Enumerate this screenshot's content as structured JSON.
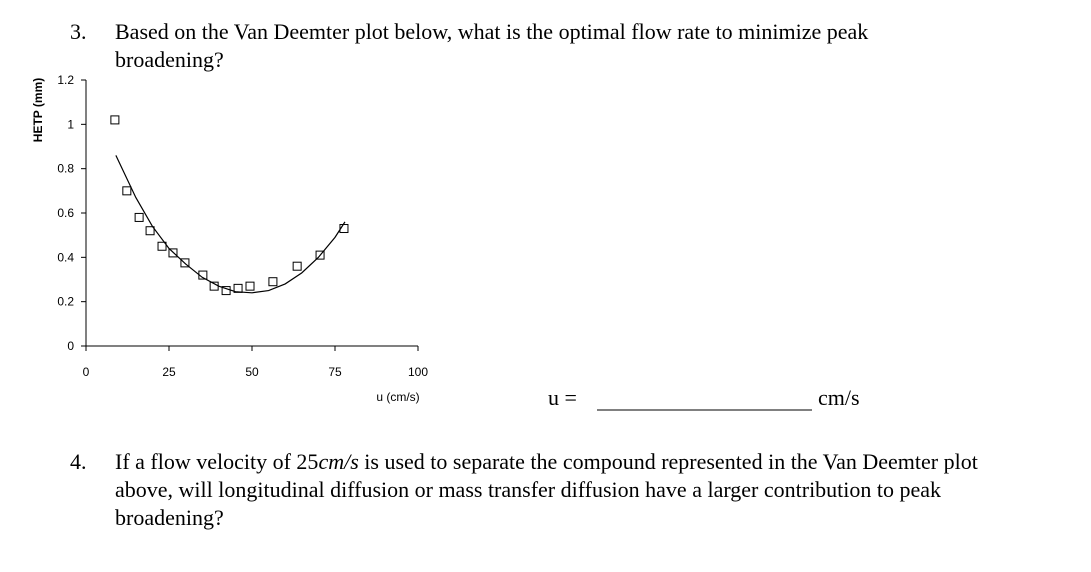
{
  "questions": [
    {
      "number": "3.",
      "line1": "Based on the Van Deemter plot below, what is the optimal flow rate to minimize peak",
      "line2": "broadening?"
    },
    {
      "number": "4.",
      "line1_before": "If a flow velocity of 25",
      "line1_italic": "cm/s",
      "line1_after": " is used to separate the compound represented in the Van Deemter plot",
      "line2": "above, will longitudinal diffusion or mass transfer diffusion have a larger contribution to peak",
      "line3": "broadening?"
    }
  ],
  "answer": {
    "label": "u =",
    "unit": "cm/s"
  },
  "chart_data": {
    "type": "scatter",
    "xlabel": "u (cm/s)",
    "ylabel": "HETP (mm)",
    "xlim": [
      0,
      100
    ],
    "xticks": [
      0,
      25,
      50,
      75,
      100
    ],
    "ylim": [
      0,
      1.2
    ],
    "yticks": [
      0,
      0.2,
      0.4,
      0.6,
      0.8,
      1,
      1.2
    ],
    "grid": false,
    "series": [
      {
        "style": "markers",
        "marker": "square",
        "color": "#000000",
        "x": [
          8.7,
          12.3,
          16,
          19.3,
          22.9,
          26.2,
          29.8,
          35.2,
          38.6,
          42.2,
          45.8,
          49.4,
          56.3,
          63.6,
          70.5,
          77.7
        ],
        "values": [
          1.02,
          0.7,
          0.58,
          0.52,
          0.45,
          0.42,
          0.375,
          0.32,
          0.27,
          0.25,
          0.26,
          0.27,
          0.29,
          0.36,
          0.41,
          0.53
        ]
      },
      {
        "style": "line",
        "color": "#000000",
        "x": [
          9,
          15,
          20,
          25,
          30,
          35,
          40,
          45,
          50,
          55,
          60,
          65,
          70,
          75,
          78
        ],
        "values": [
          0.86,
          0.67,
          0.54,
          0.44,
          0.37,
          0.31,
          0.27,
          0.245,
          0.24,
          0.25,
          0.28,
          0.33,
          0.4,
          0.49,
          0.56
        ]
      }
    ]
  }
}
